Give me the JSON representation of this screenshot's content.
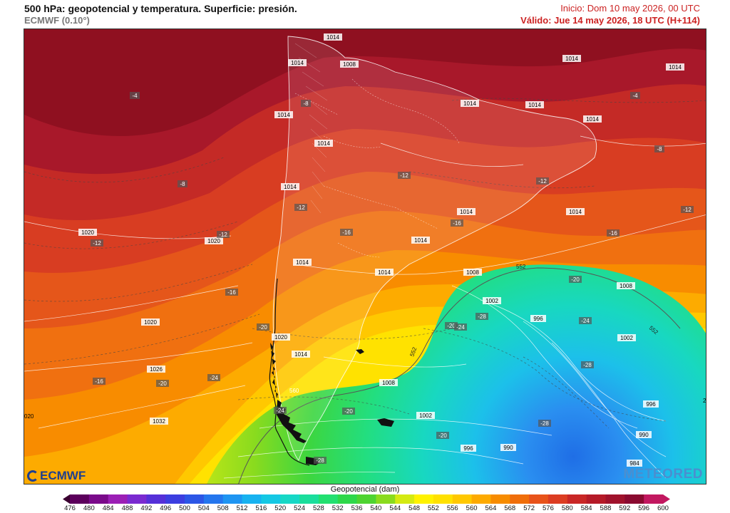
{
  "header": {
    "title": "500 hPa: geopotencial y temperatura. Superficie: presión.",
    "model": "ECMWF (0.10°)",
    "init": "Inicio: Dom 10 may 2026, 00 UTC",
    "valid": "Válido: Jue 14 may 2026, 18 UTC (H+114)"
  },
  "logos": {
    "left": "ECMWF",
    "right": "METEORED"
  },
  "colorbar": {
    "title": "Geopotencial (dam)",
    "ticks": [
      "476",
      "480",
      "484",
      "488",
      "492",
      "496",
      "500",
      "504",
      "508",
      "512",
      "516",
      "520",
      "524",
      "528",
      "532",
      "536",
      "540",
      "544",
      "548",
      "552",
      "556",
      "560",
      "564",
      "568",
      "572",
      "576",
      "580",
      "584",
      "588",
      "592",
      "596",
      "600"
    ],
    "colors": [
      "#3a0030",
      "#5c005c",
      "#7a0a8a",
      "#9b1fb5",
      "#7a2ad0",
      "#5530d8",
      "#3c3ee0",
      "#2c56e6",
      "#2476ee",
      "#1e95f2",
      "#17b2f0",
      "#14c8e4",
      "#16d8c6",
      "#1ade9c",
      "#22e070",
      "#2ed84a",
      "#4ed431",
      "#8adb1e",
      "#d4ea12",
      "#fff200",
      "#ffe100",
      "#ffc800",
      "#fdaa00",
      "#f78c00",
      "#f06e0a",
      "#e8531a",
      "#dc3d22",
      "#c92726",
      "#b51a28",
      "#a0122c",
      "#8a0a30",
      "#c21860"
    ]
  },
  "map": {
    "labels": {
      "isobar_1014": "1014",
      "isobar_1008": "1008",
      "isobar_1020": "1020",
      "isobar_1026": "1026",
      "isobar_1032": "1032",
      "isobar_1002": "1002",
      "isobar_996": "996",
      "isobar_990": "990",
      "isobar_984": "984",
      "temp_m4": "-4",
      "temp_m8": "-8",
      "temp_m12": "-12",
      "temp_m16": "-16",
      "temp_m20": "-20",
      "temp_m24": "-24",
      "temp_m28": "-28",
      "hgt_552": "552",
      "hgt_560": "560",
      "partial_020": "020",
      "partial_2": "2"
    }
  }
}
